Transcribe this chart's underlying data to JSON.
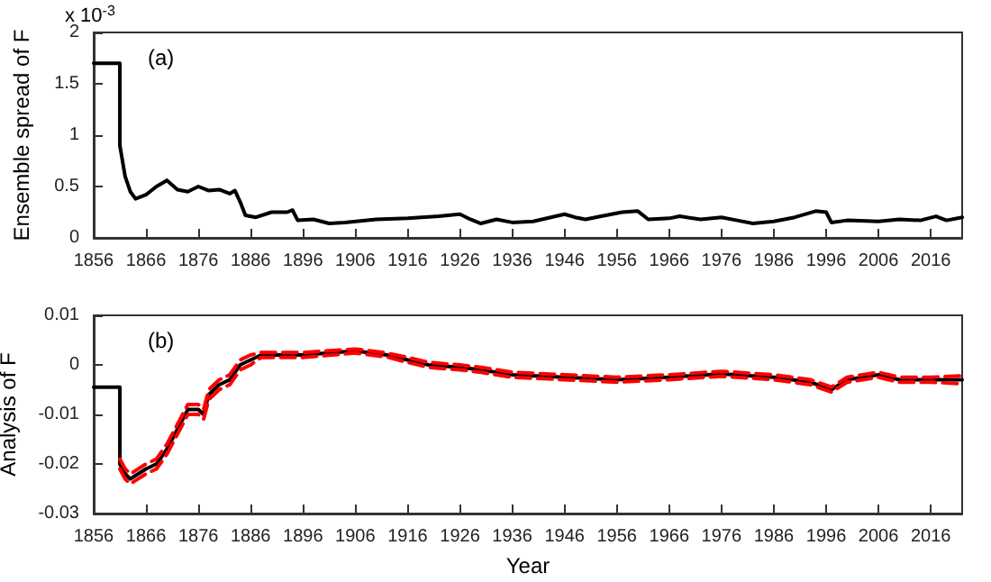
{
  "chart_data": [
    {
      "type": "line",
      "ylabel": "Ensemble spread of F",
      "annotations": [
        "x 10$^{-3}$",
        "(a)"
      ],
      "xlim": [
        1856,
        2022
      ],
      "xticks": [
        1856,
        1866,
        1876,
        1886,
        1896,
        1906,
        1916,
        1926,
        1936,
        1946,
        1956,
        1966,
        1976,
        1986,
        1996,
        2006,
        2016
      ],
      "ylim": [
        0,
        2
      ],
      "yticks": [
        0,
        0.5,
        1,
        1.5,
        2
      ],
      "grid": false,
      "marker": "none",
      "line_style": "solid",
      "series": [
        {
          "color": "#000000",
          "x": [
            1856,
            1861,
            1861,
            1862,
            1863,
            1864,
            1866,
            1868,
            1870,
            1872,
            1874,
            1876,
            1878,
            1880,
            1882,
            1883,
            1884,
            1885,
            1887,
            1890,
            1893,
            1894,
            1895,
            1898,
            1901,
            1904,
            1910,
            1916,
            1922,
            1926,
            1928,
            1930,
            1933,
            1936,
            1940,
            1946,
            1948,
            1950,
            1953,
            1957,
            1960,
            1962,
            1966,
            1968,
            1972,
            1976,
            1979,
            1982,
            1986,
            1990,
            1994,
            1996,
            1997,
            2000,
            2006,
            2010,
            2014,
            2017,
            2019,
            2022
          ],
          "values": [
            1.7,
            1.7,
            0.9,
            0.6,
            0.45,
            0.38,
            0.42,
            0.5,
            0.56,
            0.47,
            0.45,
            0.5,
            0.46,
            0.47,
            0.43,
            0.46,
            0.35,
            0.22,
            0.2,
            0.25,
            0.25,
            0.27,
            0.17,
            0.18,
            0.14,
            0.15,
            0.18,
            0.19,
            0.21,
            0.23,
            0.18,
            0.14,
            0.18,
            0.15,
            0.16,
            0.23,
            0.2,
            0.18,
            0.21,
            0.25,
            0.26,
            0.18,
            0.19,
            0.21,
            0.18,
            0.2,
            0.17,
            0.14,
            0.16,
            0.2,
            0.26,
            0.25,
            0.15,
            0.17,
            0.16,
            0.18,
            0.17,
            0.21,
            0.17,
            0.2
          ]
        }
      ]
    },
    {
      "type": "line",
      "xlabel": "Year",
      "ylabel": "Analysis of F",
      "annotations": [
        "(b)"
      ],
      "xlim": [
        1856,
        2022
      ],
      "xticks": [
        1856,
        1866,
        1876,
        1886,
        1896,
        1906,
        1916,
        1926,
        1936,
        1946,
        1956,
        1966,
        1976,
        1986,
        1996,
        2006,
        2016
      ],
      "ylim": [
        -0.03,
        0.01
      ],
      "yticks": [
        -0.03,
        -0.02,
        -0.01,
        0,
        0.01
      ],
      "grid": false,
      "marker": "none",
      "series": [
        {
          "color": "#000000",
          "line_style": "solid",
          "x": [
            1856,
            1861,
            1861,
            1862,
            1863,
            1866,
            1868,
            1870,
            1872,
            1874,
            1876,
            1877,
            1878,
            1880,
            1882,
            1884,
            1886,
            1888,
            1896,
            1906,
            1912,
            1916,
            1920,
            1926,
            1930,
            1936,
            1946,
            1956,
            1966,
            1976,
            1986,
            1993,
            1997,
            2000,
            2006,
            2010,
            2016,
            2022
          ],
          "values": [
            -0.0045,
            -0.0045,
            -0.02,
            -0.022,
            -0.023,
            -0.021,
            -0.02,
            -0.017,
            -0.013,
            -0.009,
            -0.009,
            -0.01,
            -0.006,
            -0.004,
            -0.003,
            0,
            0.001,
            0.002,
            0.002,
            0.0028,
            0.002,
            0.001,
            0,
            -0.0005,
            -0.001,
            -0.002,
            -0.0025,
            -0.003,
            -0.0025,
            -0.0018,
            -0.0025,
            -0.0035,
            -0.005,
            -0.003,
            -0.002,
            -0.003,
            -0.003,
            -0.003
          ]
        },
        {
          "color": "#ff0000",
          "line_style": "dashed",
          "x": [
            1861,
            1862,
            1863,
            1866,
            1868,
            1870,
            1872,
            1874,
            1876,
            1877,
            1878,
            1880,
            1882,
            1884,
            1886,
            1888,
            1896,
            1906,
            1912,
            1916,
            1920,
            1926,
            1930,
            1936,
            1946,
            1956,
            1966,
            1976,
            1986,
            1993,
            1997,
            2000,
            2006,
            2010,
            2016,
            2022
          ],
          "values": [
            -0.019,
            -0.021,
            -0.022,
            -0.02,
            -0.019,
            -0.016,
            -0.012,
            -0.008,
            -0.008,
            -0.009,
            -0.005,
            -0.003,
            -0.002,
            0.001,
            0.002,
            0.0025,
            0.0025,
            0.0032,
            0.0024,
            0.0015,
            0.0005,
            0,
            -0.0005,
            -0.0015,
            -0.002,
            -0.0025,
            -0.002,
            -0.0013,
            -0.002,
            -0.003,
            -0.0045,
            -0.0025,
            -0.0015,
            -0.0025,
            -0.0025,
            -0.0022
          ]
        },
        {
          "color": "#ff0000",
          "line_style": "dashed",
          "x": [
            1861,
            1862,
            1863,
            1866,
            1868,
            1870,
            1872,
            1874,
            1876,
            1877,
            1878,
            1880,
            1882,
            1884,
            1886,
            1888,
            1896,
            1906,
            1912,
            1916,
            1920,
            1926,
            1930,
            1936,
            1946,
            1956,
            1966,
            1976,
            1986,
            1993,
            1997,
            2000,
            2006,
            2010,
            2016,
            2022
          ],
          "values": [
            -0.021,
            -0.023,
            -0.024,
            -0.022,
            -0.021,
            -0.018,
            -0.014,
            -0.01,
            -0.01,
            -0.011,
            -0.007,
            -0.005,
            -0.004,
            -0.001,
            0,
            0.0015,
            0.0015,
            0.0024,
            0.0016,
            0.0005,
            -0.0005,
            -0.001,
            -0.0015,
            -0.0025,
            -0.003,
            -0.0035,
            -0.003,
            -0.0023,
            -0.003,
            -0.004,
            -0.0055,
            -0.0035,
            -0.0025,
            -0.0035,
            -0.0035,
            -0.0038
          ]
        }
      ]
    }
  ]
}
